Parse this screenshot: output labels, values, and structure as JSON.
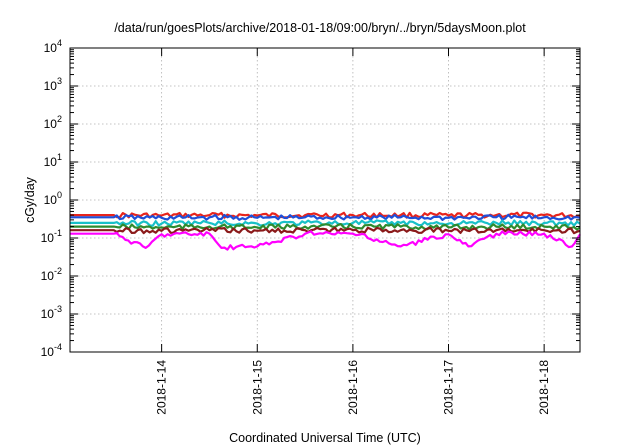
{
  "chart_data": {
    "type": "line",
    "title": "/data/run/goesPlots/archive/2018-01-18/09:00/bryn/../bryn/5daysMoon.plot",
    "xlabel": "Coordinated Universal Time (UTC)",
    "ylabel": "cGy/day",
    "yscale": "log",
    "ylim": [
      0.0001,
      10000
    ],
    "xlim": [
      "2018-01-13T01:00",
      "2018-01-18T09:00"
    ],
    "grid": true,
    "legend": "none",
    "y_ticks": [
      {
        "base": "10",
        "exp": "-4",
        "value": 0.0001
      },
      {
        "base": "10",
        "exp": "-3",
        "value": 0.001
      },
      {
        "base": "10",
        "exp": "-2",
        "value": 0.01
      },
      {
        "base": "10",
        "exp": "-1",
        "value": 0.1
      },
      {
        "base": "10",
        "exp": "0",
        "value": 1
      },
      {
        "base": "10",
        "exp": "1",
        "value": 10
      },
      {
        "base": "10",
        "exp": "2",
        "value": 100
      },
      {
        "base": "10",
        "exp": "3",
        "value": 1000
      },
      {
        "base": "10",
        "exp": "4",
        "value": 10000
      }
    ],
    "x_ticks": [
      {
        "label": "2018-1-14",
        "value": "2018-01-14T00:00"
      },
      {
        "label": "2018-1-15",
        "value": "2018-01-15T00:00"
      },
      {
        "label": "2018-1-16",
        "value": "2018-01-16T00:00"
      },
      {
        "label": "2018-1-17",
        "value": "2018-01-17T00:00"
      },
      {
        "label": "2018-1-18",
        "value": "2018-01-18T00:00"
      }
    ],
    "series": [
      {
        "color": "#e8241c",
        "values": [
          {
            "x": "2018-01-13T01:00",
            "y": 0.4
          },
          {
            "x": "2018-01-13T12:00",
            "y": 0.4
          },
          {
            "x": "2018-01-14T00:00",
            "y": 0.39
          },
          {
            "x": "2018-01-14T12:00",
            "y": 0.4
          },
          {
            "x": "2018-01-15T00:00",
            "y": 0.39
          },
          {
            "x": "2018-01-15T12:00",
            "y": 0.4
          },
          {
            "x": "2018-01-16T00:00",
            "y": 0.4
          },
          {
            "x": "2018-01-16T12:00",
            "y": 0.4
          },
          {
            "x": "2018-01-17T00:00",
            "y": 0.39
          },
          {
            "x": "2018-01-17T12:00",
            "y": 0.4
          },
          {
            "x": "2018-01-18T00:00",
            "y": 0.4
          },
          {
            "x": "2018-01-18T09:00",
            "y": 0.39
          }
        ]
      },
      {
        "color": "#1f4fd8",
        "values": [
          {
            "x": "2018-01-13T01:00",
            "y": 0.35
          },
          {
            "x": "2018-01-13T12:00",
            "y": 0.35
          },
          {
            "x": "2018-01-14T00:00",
            "y": 0.34
          },
          {
            "x": "2018-01-14T12:00",
            "y": 0.35
          },
          {
            "x": "2018-01-15T00:00",
            "y": 0.34
          },
          {
            "x": "2018-01-15T12:00",
            "y": 0.35
          },
          {
            "x": "2018-01-16T00:00",
            "y": 0.35
          },
          {
            "x": "2018-01-16T12:00",
            "y": 0.35
          },
          {
            "x": "2018-01-17T00:00",
            "y": 0.34
          },
          {
            "x": "2018-01-17T12:00",
            "y": 0.35
          },
          {
            "x": "2018-01-18T00:00",
            "y": 0.35
          },
          {
            "x": "2018-01-18T09:00",
            "y": 0.34
          }
        ]
      },
      {
        "color": "#18c0c8",
        "values": [
          {
            "x": "2018-01-13T01:00",
            "y": 0.25
          },
          {
            "x": "2018-01-13T12:00",
            "y": 0.25
          },
          {
            "x": "2018-01-14T00:00",
            "y": 0.24
          },
          {
            "x": "2018-01-14T12:00",
            "y": 0.25
          },
          {
            "x": "2018-01-15T00:00",
            "y": 0.24
          },
          {
            "x": "2018-01-15T12:00",
            "y": 0.25
          },
          {
            "x": "2018-01-16T00:00",
            "y": 0.25
          },
          {
            "x": "2018-01-16T12:00",
            "y": 0.25
          },
          {
            "x": "2018-01-17T00:00",
            "y": 0.24
          },
          {
            "x": "2018-01-17T12:00",
            "y": 0.25
          },
          {
            "x": "2018-01-18T00:00",
            "y": 0.25
          },
          {
            "x": "2018-01-18T09:00",
            "y": 0.24
          }
        ]
      },
      {
        "color": "#2e8b2e",
        "values": [
          {
            "x": "2018-01-13T01:00",
            "y": 0.2
          },
          {
            "x": "2018-01-13T12:00",
            "y": 0.2
          },
          {
            "x": "2018-01-14T00:00",
            "y": 0.19
          },
          {
            "x": "2018-01-14T12:00",
            "y": 0.2
          },
          {
            "x": "2018-01-15T00:00",
            "y": 0.19
          },
          {
            "x": "2018-01-15T12:00",
            "y": 0.2
          },
          {
            "x": "2018-01-16T00:00",
            "y": 0.2
          },
          {
            "x": "2018-01-16T12:00",
            "y": 0.2
          },
          {
            "x": "2018-01-17T00:00",
            "y": 0.19
          },
          {
            "x": "2018-01-17T12:00",
            "y": 0.2
          },
          {
            "x": "2018-01-18T00:00",
            "y": 0.2
          },
          {
            "x": "2018-01-18T09:00",
            "y": 0.19
          }
        ]
      },
      {
        "color": "#8b1a1a",
        "values": [
          {
            "x": "2018-01-13T01:00",
            "y": 0.16
          },
          {
            "x": "2018-01-13T12:00",
            "y": 0.16
          },
          {
            "x": "2018-01-14T00:00",
            "y": 0.155
          },
          {
            "x": "2018-01-14T12:00",
            "y": 0.16
          },
          {
            "x": "2018-01-15T00:00",
            "y": 0.155
          },
          {
            "x": "2018-01-15T12:00",
            "y": 0.16
          },
          {
            "x": "2018-01-16T00:00",
            "y": 0.16
          },
          {
            "x": "2018-01-16T12:00",
            "y": 0.16
          },
          {
            "x": "2018-01-17T00:00",
            "y": 0.155
          },
          {
            "x": "2018-01-17T12:00",
            "y": 0.16
          },
          {
            "x": "2018-01-18T00:00",
            "y": 0.16
          },
          {
            "x": "2018-01-18T09:00",
            "y": 0.155
          }
        ]
      },
      {
        "color": "#ff00ff",
        "values": [
          {
            "x": "2018-01-13T01:00",
            "y": 0.13
          },
          {
            "x": "2018-01-13T12:00",
            "y": 0.13
          },
          {
            "x": "2018-01-13T20:00",
            "y": 0.055
          },
          {
            "x": "2018-01-14T00:00",
            "y": 0.125
          },
          {
            "x": "2018-01-14T12:00",
            "y": 0.13
          },
          {
            "x": "2018-01-14T15:00",
            "y": 0.055
          },
          {
            "x": "2018-01-15T00:00",
            "y": 0.06
          },
          {
            "x": "2018-01-15T12:00",
            "y": 0.13
          },
          {
            "x": "2018-01-16T00:00",
            "y": 0.13
          },
          {
            "x": "2018-01-16T12:00",
            "y": 0.06
          },
          {
            "x": "2018-01-17T00:00",
            "y": 0.125
          },
          {
            "x": "2018-01-17T05:00",
            "y": 0.06
          },
          {
            "x": "2018-01-17T12:00",
            "y": 0.13
          },
          {
            "x": "2018-01-18T00:00",
            "y": 0.13
          },
          {
            "x": "2018-01-18T07:00",
            "y": 0.06
          },
          {
            "x": "2018-01-18T09:00",
            "y": 0.125
          }
        ]
      }
    ]
  }
}
